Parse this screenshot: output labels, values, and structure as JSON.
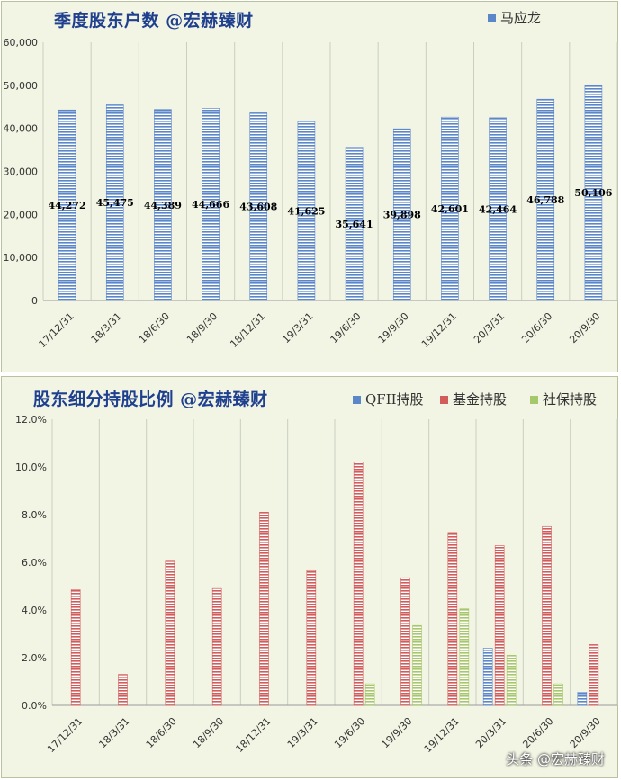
{
  "charts": [
    {
      "title": "季度股东户数 @宏赫臻财",
      "chart_data": {
        "type": "bar",
        "categories": [
          "17/12/31",
          "18/3/31",
          "18/6/30",
          "18/9/30",
          "18/12/31",
          "19/3/31",
          "19/6/30",
          "19/9/30",
          "19/12/31",
          "20/3/31",
          "20/6/30",
          "20/9/30"
        ],
        "series": [
          {
            "name": "马应龙",
            "values": [
              44272,
              45475,
              44389,
              44666,
              43608,
              41625,
              35641,
              39898,
              42601,
              42464,
              46788,
              50106
            ],
            "color": "#5b86c8",
            "labels": [
              "44,272",
              "45,475",
              "44,389",
              "44,666",
              "43,608",
              "41,625",
              "35,641",
              "39,898",
              "42,601",
              "42,464",
              "46,788",
              "50,106"
            ]
          }
        ],
        "ylim": [
          0,
          60000
        ],
        "yticks": [
          "0",
          "10,000",
          "20,000",
          "30,000",
          "40,000",
          "50,000",
          "60,000"
        ],
        "ytick_values": [
          0,
          10000,
          20000,
          30000,
          40000,
          50000,
          60000
        ],
        "legend": "top-right",
        "grid": "vertical"
      }
    },
    {
      "title": "股东细分持股比例 @宏赫臻财",
      "chart_data": {
        "type": "bar",
        "categories": [
          "17/12/31",
          "18/3/31",
          "18/6/30",
          "18/9/30",
          "18/12/31",
          "19/3/31",
          "19/6/30",
          "19/9/30",
          "19/12/31",
          "20/3/31",
          "20/6/30",
          "20/9/30"
        ],
        "series": [
          {
            "name": "QFII持股",
            "values": [
              0,
              0,
              0,
              0,
              0,
              0,
              0,
              0,
              0,
              2.4,
              0,
              0.55
            ],
            "color": "#5b86c8"
          },
          {
            "name": "基金持股",
            "values": [
              4.85,
              1.3,
              6.05,
              4.9,
              8.1,
              5.65,
              10.2,
              5.35,
              7.25,
              6.7,
              7.5,
              2.55
            ],
            "color": "#d05c5c"
          },
          {
            "name": "社保持股",
            "values": [
              0,
              0,
              0,
              0,
              0,
              0,
              0.9,
              3.35,
              4.05,
              2.1,
              0.9,
              0
            ],
            "color": "#a6c76a"
          }
        ],
        "ylim": [
          0,
          12
        ],
        "yticks": [
          "0.0%",
          "2.0%",
          "4.0%",
          "6.0%",
          "8.0%",
          "10.0%",
          "12.0%"
        ],
        "ytick_values": [
          0,
          2,
          4,
          6,
          8,
          10,
          12
        ],
        "legend": "top-right",
        "grid": "vertical"
      }
    }
  ],
  "watermark": "头条 @宏赫臻财"
}
